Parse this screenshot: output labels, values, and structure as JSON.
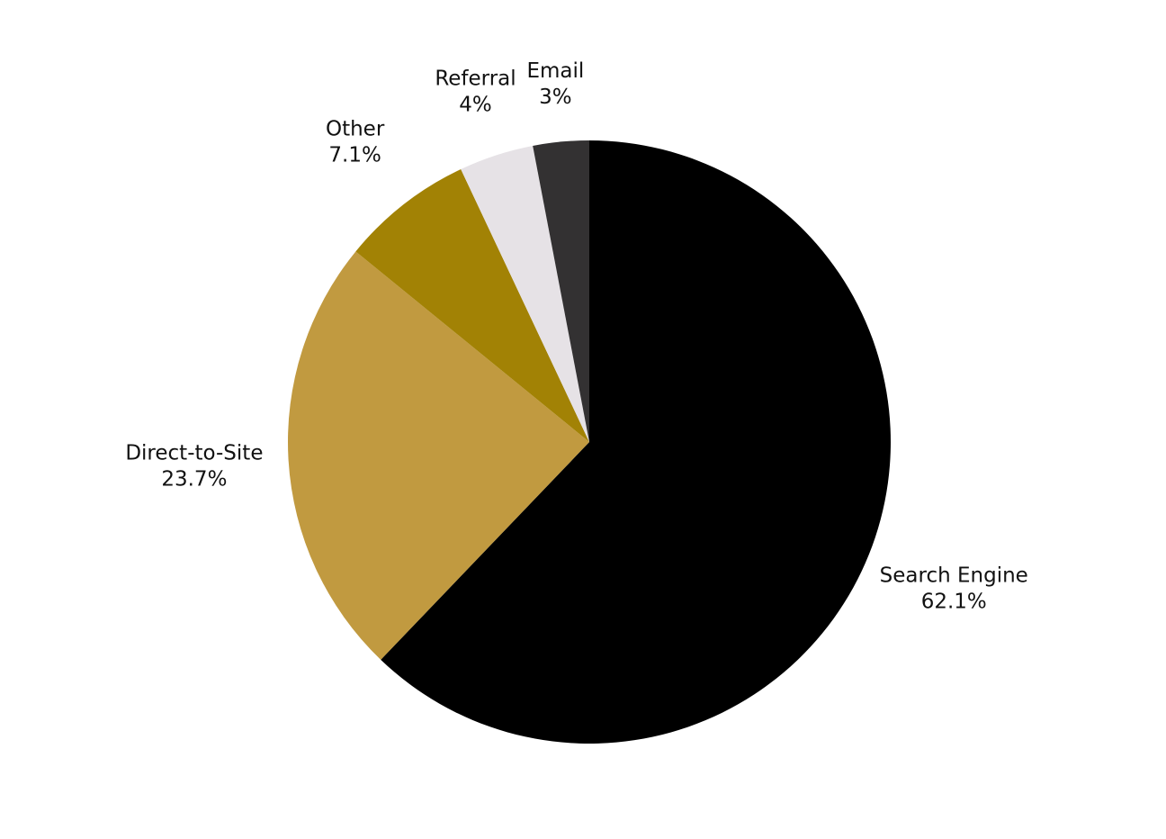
{
  "chart_data": {
    "type": "pie",
    "categories": [
      "Search Engine",
      "Direct-to-Site",
      "Other",
      "Referral",
      "Email"
    ],
    "values": [
      62.1,
      23.7,
      7.1,
      4,
      3
    ],
    "value_labels": [
      "62.1%",
      "23.7%",
      "7.1%",
      "4%",
      "3%"
    ],
    "colors": [
      "#000000",
      "#c19a40",
      "#a28205",
      "#e6e2e6",
      "#333132"
    ]
  }
}
